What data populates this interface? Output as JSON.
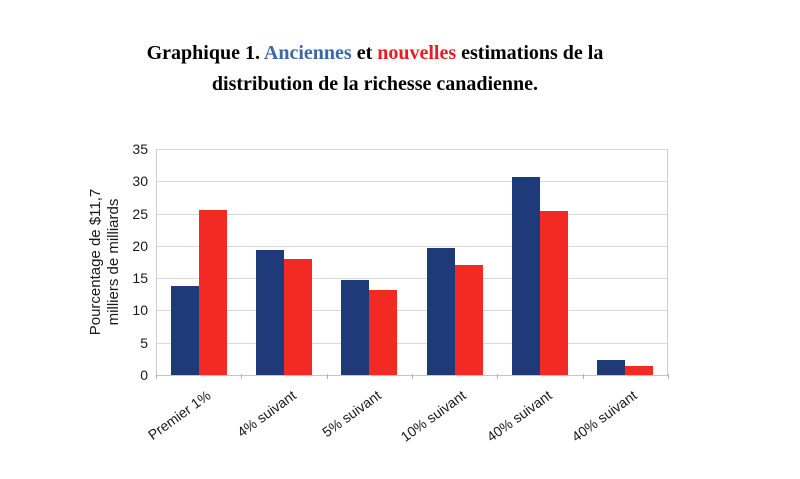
{
  "title": {
    "line1_parts": [
      {
        "text": "Graphique 1. ",
        "color": "#000000"
      },
      {
        "text": "Anciennes",
        "color": "#3b69a8"
      },
      {
        "text": " et ",
        "color": "#000000"
      },
      {
        "text": "nouvelles",
        "color": "#ed1b1f"
      },
      {
        "text": " estimations de la",
        "color": "#000000"
      }
    ],
    "line2": "distribution de la richesse canadienne."
  },
  "chart_data": {
    "type": "bar",
    "title": "Graphique 1. Anciennes et nouvelles estimations de la distribution de la richesse canadienne.",
    "categories": [
      "Premier 1%",
      "4% suivant",
      "5% suivant",
      "10% suivant",
      "40% suivant",
      "40% suivant"
    ],
    "series": [
      {
        "name": "Anciennes",
        "color": "#1e3a78",
        "values": [
          13.8,
          19.3,
          14.7,
          19.6,
          30.6,
          2.4
        ]
      },
      {
        "name": "nouvelles",
        "color": "#f32a23",
        "values": [
          25.6,
          17.9,
          13.1,
          17.1,
          25.4,
          1.4
        ]
      }
    ],
    "ylabel_lines": [
      "Pourcentage de $11,7",
      "milliers de milliards"
    ],
    "yticks": [
      0,
      5,
      10,
      15,
      20,
      25,
      30,
      35
    ],
    "ylim": [
      0,
      35
    ],
    "grid": true,
    "legend_position": "none",
    "colors": {
      "gridline": "#dadada",
      "baseline": "#c6c6c6",
      "plot_border": "#cccccc",
      "category_tick": "#b5b5b5",
      "tick_text": "#1a1a1a"
    }
  }
}
